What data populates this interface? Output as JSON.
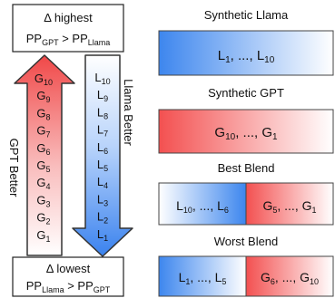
{
  "top_box": {
    "line1": "Δ highest",
    "line2": {
      "a": "PP",
      "a_sub": "GPT",
      "mid": " > ",
      "b": "PP",
      "b_sub": "Llama"
    }
  },
  "bottom_box": {
    "line1": "Δ lowest",
    "line2": {
      "a": "PP",
      "a_sub": "Llama",
      "mid": " > ",
      "b": "PP",
      "b_sub": "GPT"
    }
  },
  "red_arrow": {
    "side_label": "GPT Better",
    "items": [
      {
        "base": "G",
        "sub": "10"
      },
      {
        "base": "G",
        "sub": "9"
      },
      {
        "base": "G",
        "sub": "8"
      },
      {
        "base": "G",
        "sub": "7"
      },
      {
        "base": "G",
        "sub": "6"
      },
      {
        "base": "G",
        "sub": "5"
      },
      {
        "base": "G",
        "sub": "4"
      },
      {
        "base": "G",
        "sub": "3"
      },
      {
        "base": "G",
        "sub": "2"
      },
      {
        "base": "G",
        "sub": "1"
      }
    ]
  },
  "blue_arrow": {
    "side_label": "Llama Better",
    "items": [
      {
        "base": "L",
        "sub": "10"
      },
      {
        "base": "L",
        "sub": "9"
      },
      {
        "base": "L",
        "sub": "8"
      },
      {
        "base": "L",
        "sub": "7"
      },
      {
        "base": "L",
        "sub": "6"
      },
      {
        "base": "L",
        "sub": "5"
      },
      {
        "base": "L",
        "sub": "4"
      },
      {
        "base": "L",
        "sub": "3"
      },
      {
        "base": "L",
        "sub": "2"
      },
      {
        "base": "L",
        "sub": "1"
      }
    ]
  },
  "panels": {
    "synthetic_llama": {
      "title": "Synthetic Llama",
      "text": {
        "a": "L",
        "a_sub": "1",
        "mid": ", ..., ",
        "b": "L",
        "b_sub": "10"
      }
    },
    "synthetic_gpt": {
      "title": "Synthetic GPT",
      "text": {
        "a": "G",
        "a_sub": "10",
        "mid": ", ..., ",
        "b": "G",
        "b_sub": "1"
      }
    },
    "best_blend": {
      "title": "Best Blend",
      "left": {
        "a": "L",
        "a_sub": "10",
        "mid": ", ..., ",
        "b": "L",
        "b_sub": "6"
      },
      "right": {
        "a": "G",
        "a_sub": "5",
        "mid": ", ..., ",
        "b": "G",
        "b_sub": "1"
      }
    },
    "worst_blend": {
      "title": "Worst Blend",
      "left": {
        "a": "L",
        "a_sub": "1",
        "mid": ", ..., ",
        "b": "L",
        "b_sub": "5"
      },
      "right": {
        "a": "G",
        "a_sub": "6",
        "mid": ", ..., ",
        "b": "G",
        "b_sub": "10"
      }
    }
  },
  "colors": {
    "red": "#f35b5b",
    "blue": "#3d86ee",
    "outline": "#333333"
  }
}
